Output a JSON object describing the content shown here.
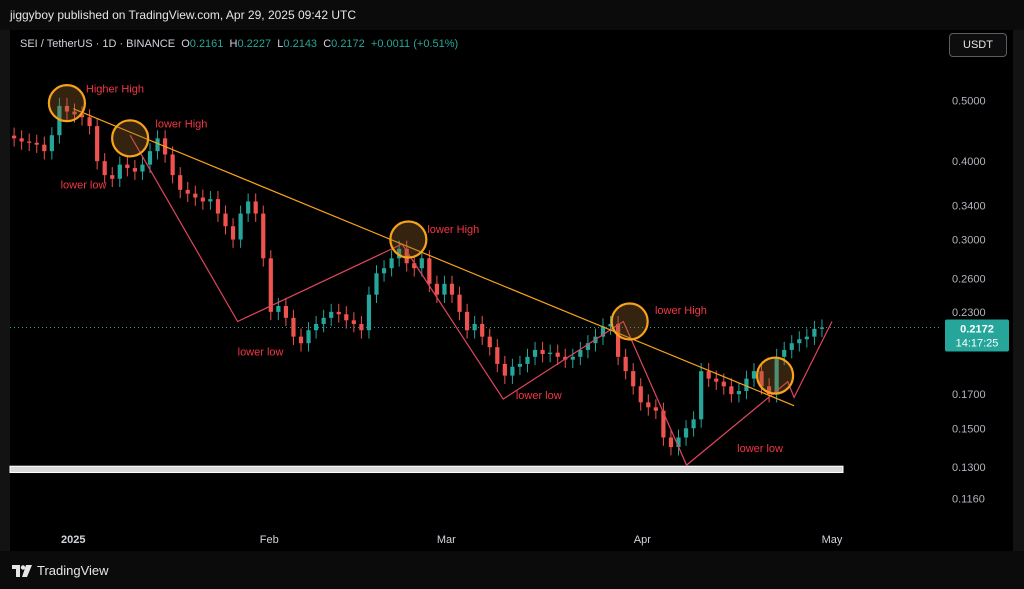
{
  "header": {
    "publisher": "jiggyboy published on TradingView.com, Apr 29, 2025 09:42 UTC"
  },
  "symbol": {
    "name": "SEI / TetherUS · 1D · BINANCE",
    "o_label": "O",
    "o": "0.2161",
    "h_label": "H",
    "h": "0.2227",
    "l_label": "L",
    "l": "0.2143",
    "c_label": "C",
    "c": "0.2172",
    "change": "+0.0011 (+0.51%)"
  },
  "toolbar": {
    "currency_label": "USDT"
  },
  "price_axis": {
    "last_price": "0.2172",
    "countdown": "14:17:25"
  },
  "footer": {
    "brand_label": "TradingView"
  },
  "colors": {
    "up": "#26a69a",
    "down": "#ef5350",
    "trendline": "#f7a21b",
    "circle": "#f7a21b",
    "zigzag": "#e0455f",
    "annotation": "#f23645",
    "support_band": "#d9d9d9"
  },
  "chart_data": {
    "type": "candlestick",
    "scale": "log",
    "ylim": [
      0.104,
      0.58
    ],
    "yticks": [
      "0.5000",
      "0.4000",
      "0.3400",
      "0.3000",
      "0.2600",
      "0.2300",
      "0.1700",
      "0.1500",
      "0.1300",
      "0.1160"
    ],
    "xticks": [
      "2025",
      "Feb",
      "Mar",
      "Apr",
      "May"
    ],
    "x_range": [
      "2024-12-22",
      "2025-05-01"
    ],
    "last_price": 0.2172,
    "closes": [
      0.435,
      0.43,
      0.428,
      0.425,
      0.415,
      0.44,
      0.49,
      0.48,
      0.475,
      0.47,
      0.455,
      0.4,
      0.38,
      0.375,
      0.395,
      0.39,
      0.385,
      0.395,
      0.415,
      0.435,
      0.41,
      0.38,
      0.36,
      0.355,
      0.35,
      0.345,
      0.348,
      0.33,
      0.315,
      0.3,
      0.33,
      0.345,
      0.33,
      0.28,
      0.23,
      0.235,
      0.225,
      0.21,
      0.205,
      0.215,
      0.22,
      0.225,
      0.23,
      0.228,
      0.223,
      0.22,
      0.215,
      0.245,
      0.265,
      0.27,
      0.28,
      0.29,
      0.275,
      0.27,
      0.28,
      0.255,
      0.245,
      0.255,
      0.245,
      0.23,
      0.215,
      0.22,
      0.21,
      0.202,
      0.19,
      0.182,
      0.188,
      0.19,
      0.195,
      0.2,
      0.197,
      0.198,
      0.195,
      0.193,
      0.195,
      0.2,
      0.205,
      0.21,
      0.218,
      0.22,
      0.195,
      0.185,
      0.175,
      0.165,
      0.162,
      0.16,
      0.145,
      0.14,
      0.145,
      0.15,
      0.155,
      0.185,
      0.18,
      0.178,
      0.175,
      0.17,
      0.172,
      0.18,
      0.185,
      0.175,
      0.17,
      0.195,
      0.2,
      0.205,
      0.208,
      0.21,
      0.2161,
      0.2172
    ],
    "annotations": {
      "higher_high": "Higher High",
      "lower_high_1": "lower High",
      "lower_high_2": "lower High",
      "lower_high_3": "lower High",
      "lower_low_1": "lower low",
      "lower_low_2": "lower low",
      "lower_low_3": "lower low",
      "lower_low_4": "lower low"
    },
    "trendline": {
      "from": {
        "date": "2025-01-01",
        "price": 0.485
      },
      "to": {
        "date": "2025-04-25",
        "price": 0.163
      }
    },
    "support_band": {
      "low": 0.1275,
      "high": 0.1305
    },
    "highlight_circles": [
      {
        "date": "2024-12-31",
        "price": 0.495
      },
      {
        "date": "2025-01-10",
        "price": 0.435
      },
      {
        "date": "2025-02-23",
        "price": 0.3
      },
      {
        "date": "2025-03-30",
        "price": 0.222
      },
      {
        "date": "2025-04-22",
        "price": 0.182
      }
    ],
    "zigzag": [
      {
        "date": "2025-01-10",
        "price": 0.44
      },
      {
        "date": "2025-01-27",
        "price": 0.222
      },
      {
        "date": "2025-02-22",
        "price": 0.295
      },
      {
        "date": "2025-03-10",
        "price": 0.167
      },
      {
        "date": "2025-03-29",
        "price": 0.222
      },
      {
        "date": "2025-04-08",
        "price": 0.131
      },
      {
        "date": "2025-04-24",
        "price": 0.178
      },
      {
        "date": "2025-04-25",
        "price": 0.168
      },
      {
        "date": "2025-05-01",
        "price": 0.222
      }
    ]
  }
}
